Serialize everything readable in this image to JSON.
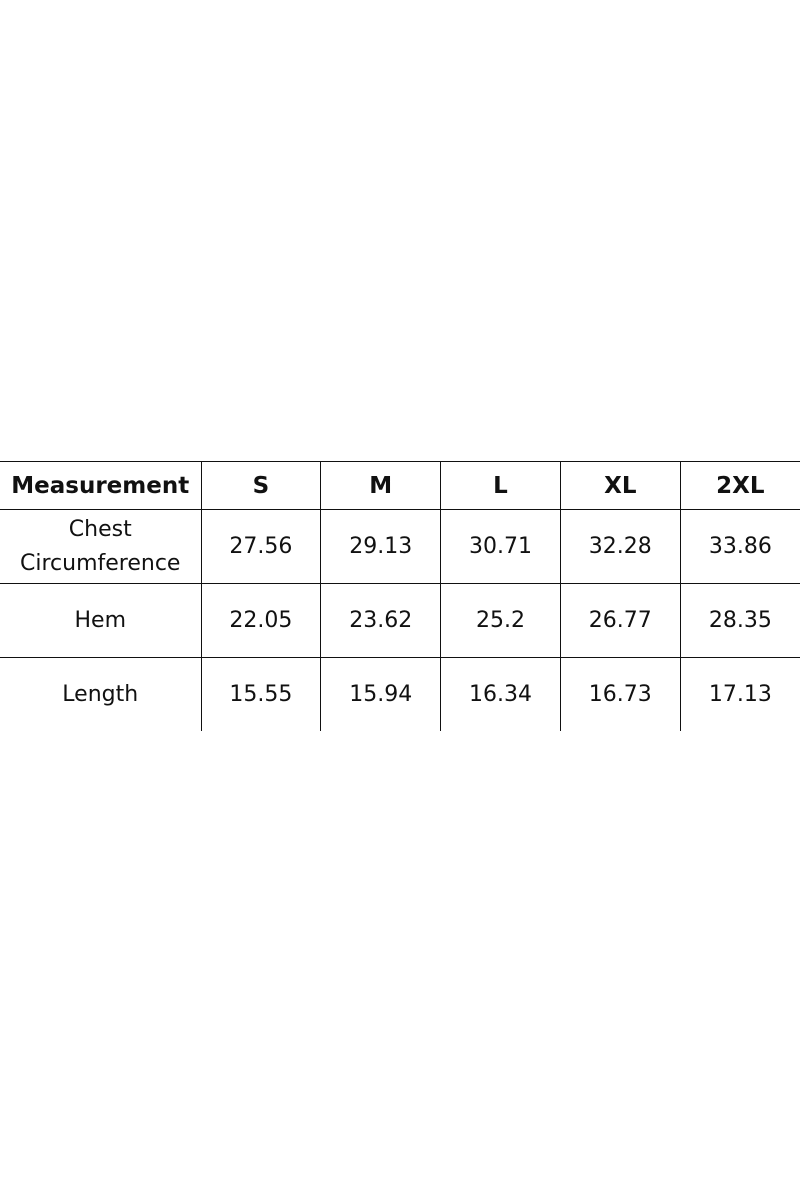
{
  "table": {
    "header": [
      "Measurement",
      "S",
      "M",
      "L",
      "XL",
      "2XL"
    ],
    "rows": [
      [
        "Chest Circumference",
        "27.56",
        "29.13",
        "30.71",
        "32.28",
        "33.86"
      ],
      [
        "Hem",
        "22.05",
        "23.62",
        "25.2",
        "26.77",
        "28.35"
      ],
      [
        "Length",
        "15.55",
        "15.94",
        "16.34",
        "16.73",
        "17.13"
      ]
    ]
  }
}
